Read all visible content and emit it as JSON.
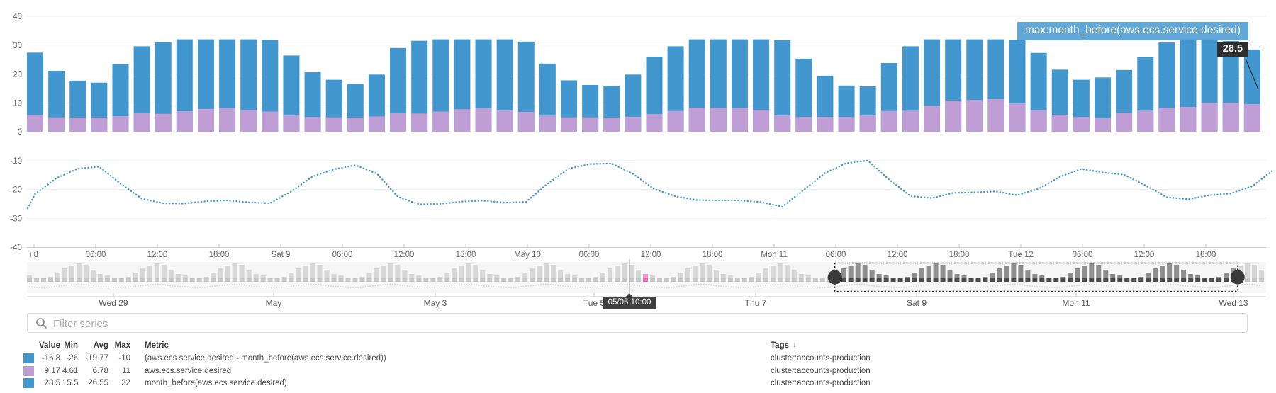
{
  "tooltip": {
    "series_label": "max:month_before(aws.ecs.service.desired)",
    "value": "28.5"
  },
  "cursor_tooltip": {
    "label": "05/05 10:00"
  },
  "filter": {
    "placeholder": "Filter series"
  },
  "legend": {
    "headers": {
      "value": "Value",
      "min": "Min",
      "avg": "Avg",
      "max": "Max",
      "metric": "Metric",
      "tags": "Tags",
      "sort_icon": "↓"
    },
    "rows": [
      {
        "color": "#4297cf",
        "value": "-16.8",
        "min": "-26",
        "avg": "-19.77",
        "max": "-10",
        "metric": "(aws.ecs.service.desired - month_before(aws.ecs.service.desired))",
        "tags": "cluster:accounts-production"
      },
      {
        "color": "#bf9ed6",
        "value": "9.17",
        "min": "4.61",
        "avg": "6.78",
        "max": "11",
        "metric": "aws.ecs.service.desired",
        "tags": "cluster:accounts-production"
      },
      {
        "color": "#4297cf",
        "value": "28.5",
        "min": "15.5",
        "avg": "26.55",
        "max": "32",
        "metric": "month_before(aws.ecs.service.desired)",
        "tags": "cluster:accounts-production"
      }
    ]
  },
  "chart_data": {
    "type": "bar",
    "title": "",
    "ylim": [
      -40,
      40
    ],
    "y_ticks": [
      40,
      30,
      20,
      10,
      0,
      -10,
      -20,
      -30,
      -40
    ],
    "grid": true,
    "x_tick_labels": [
      "i 8",
      "06:00",
      "12:00",
      "18:00",
      "Sat 9",
      "06:00",
      "12:00",
      "18:00",
      "May 10",
      "06:00",
      "12:00",
      "18:00",
      "Mon 11",
      "06:00",
      "12:00",
      "18:00",
      "Tue 12",
      "06:00",
      "12:00",
      "18:00"
    ],
    "series": [
      {
        "name": "month_before(aws.ecs.service.desired)",
        "render": "bar",
        "color": "#4297cf",
        "values": [
          27.4,
          21.1,
          17.7,
          17.0,
          23.4,
          29.6,
          31.0,
          32,
          32,
          32,
          32,
          31.8,
          26.4,
          20.6,
          18.0,
          16.5,
          19.8,
          29.0,
          31.5,
          32,
          32,
          32,
          32,
          31.2,
          23.6,
          17.8,
          16.2,
          15.9,
          19.8,
          26.0,
          29.6,
          32,
          32,
          32,
          32,
          31.7,
          25.3,
          19.4,
          16.0,
          15.7,
          23.8,
          29.6,
          32,
          32,
          32,
          32,
          31.8,
          27.3,
          21.5,
          18.0,
          18.8,
          21.4,
          25.9,
          30.9,
          32,
          32,
          31.4,
          28.5
        ]
      },
      {
        "name": "aws.ecs.service.desired",
        "render": "bar",
        "color": "#bf9ed6",
        "values": [
          5.8,
          5.0,
          4.9,
          4.9,
          5.4,
          6.4,
          6.2,
          7.1,
          7.9,
          8.2,
          7.5,
          7.0,
          5.7,
          5.1,
          5.0,
          4.9,
          5.3,
          6.4,
          6.3,
          7.0,
          7.8,
          8.1,
          7.4,
          6.9,
          5.6,
          5.0,
          5.0,
          4.9,
          5.2,
          6.1,
          7.2,
          8.3,
          8.2,
          8.2,
          7.6,
          5.7,
          5.1,
          5.1,
          5.1,
          5.7,
          7.2,
          7.3,
          9.0,
          10.8,
          11.0,
          11.3,
          9.8,
          7.5,
          5.9,
          5.1,
          4.7,
          6.5,
          7.3,
          8.2,
          8.6,
          10.0,
          10.0,
          9.6
        ]
      },
      {
        "name": "(aws.ecs.service.desired - month_before(aws.ecs.service.desired))",
        "render": "dotted-line",
        "color": "#4297cf",
        "head": -26.5,
        "tail": -13.5,
        "values": [
          -21.6,
          -16.1,
          -12.8,
          -12.1,
          -18.0,
          -23.2,
          -24.8,
          -24.9,
          -24.1,
          -23.8,
          -24.5,
          -24.8,
          -20.7,
          -15.5,
          -13.0,
          -11.6,
          -14.5,
          -22.6,
          -25.2,
          -25.0,
          -24.2,
          -23.9,
          -24.6,
          -24.3,
          -18.0,
          -12.8,
          -11.2,
          -11.0,
          -14.6,
          -19.9,
          -22.4,
          -23.7,
          -23.8,
          -23.8,
          -24.4,
          -26.0,
          -20.2,
          -14.3,
          -10.9,
          -10.0,
          -16.6,
          -22.3,
          -23.0,
          -21.2,
          -21.0,
          -20.7,
          -22.0,
          -19.8,
          -15.6,
          -12.9,
          -14.1,
          -14.9,
          -18.6,
          -22.7,
          -23.4,
          -22.0,
          -21.4,
          -18.9
        ]
      }
    ]
  },
  "timeline": {
    "labels": [
      "Wed 29",
      "May",
      "May 3",
      "Tue 5",
      "Thu 7",
      "Sat 9",
      "Mon 11",
      "Wed 13"
    ],
    "day_profile": [
      9,
      6,
      5,
      7,
      13,
      19,
      23,
      26,
      24,
      17,
      11
    ],
    "num_bars": 175,
    "highlight_index": 87,
    "selection": {
      "start_frac": 0.652,
      "end_frac": 0.977
    }
  },
  "colors": {
    "bar_blue": "#4297cf",
    "bar_purple": "#bf9ed6",
    "grid": "#efefef",
    "axis_line": "#cbcbcb",
    "tick": "#c3c3c3",
    "axis_text": "#666666",
    "timeline_bg": "#f6f6f6",
    "mini_light": "#d7d7d7",
    "mini_light_base": "#c6c6c6",
    "mini_dark": "#8f8f8f",
    "mini_dark_base": "#4b4b4b",
    "pink": "#f59fd2",
    "pink_base": "#ec67b4",
    "selection_stroke": "#2b2b2b",
    "handle": "#3a3a3a",
    "cursor_line": "#9e9e9e",
    "date_text": "#555555",
    "pointer_line": "#2e2e2e"
  }
}
